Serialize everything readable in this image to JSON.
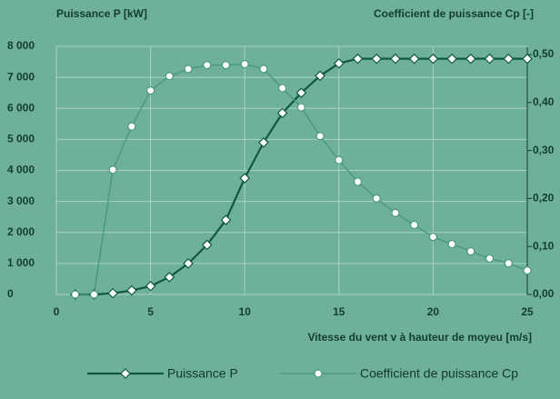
{
  "chart_data": {
    "type": "line",
    "ylabel": "Puissance P [kW]",
    "y2label": "Coefficient de puissance Cp [-]",
    "xlabel": "Vitesse du vent v à hauteur de moyeu [m/s]",
    "x": [
      1,
      2,
      3,
      4,
      5,
      6,
      7,
      8,
      9,
      10,
      11,
      12,
      13,
      14,
      15,
      16,
      17,
      18,
      19,
      20,
      21,
      22,
      23,
      24,
      25
    ],
    "series": [
      {
        "name": "Puissance P",
        "color": "#0f5a3f",
        "marker": "diamond",
        "axis": "y",
        "values": [
          0,
          0,
          40,
          130,
          270,
          560,
          1000,
          1600,
          2400,
          3750,
          4900,
          5850,
          6500,
          7050,
          7450,
          7600,
          7600,
          7600,
          7600,
          7600,
          7600,
          7600,
          7600,
          7600,
          7600
        ]
      },
      {
        "name": "Coefficient de puissance Cp",
        "color": "#4a9a7c",
        "marker": "circle",
        "axis": "y2",
        "values": [
          0,
          0,
          0.26,
          0.35,
          0.425,
          0.455,
          0.47,
          0.478,
          0.478,
          0.48,
          0.47,
          0.43,
          0.39,
          0.33,
          0.28,
          0.235,
          0.2,
          0.17,
          0.145,
          0.12,
          0.105,
          0.09,
          0.075,
          0.065,
          0.05
        ]
      }
    ],
    "xlim": [
      0,
      25
    ],
    "xticks": [
      0,
      5,
      10,
      15,
      20,
      25
    ],
    "ylim": [
      0,
      8000
    ],
    "yticks": [
      {
        "value": 0,
        "label": "0"
      },
      {
        "value": 1000,
        "label": "1 000"
      },
      {
        "value": 2000,
        "label": "2 000"
      },
      {
        "value": 3000,
        "label": "3 000"
      },
      {
        "value": 4000,
        "label": "4 000"
      },
      {
        "value": 5000,
        "label": "5 000"
      },
      {
        "value": 6000,
        "label": "6 000"
      },
      {
        "value": 7000,
        "label": "7 000"
      },
      {
        "value": 8000,
        "label": "8 000"
      }
    ],
    "y2lim": [
      0,
      0.5
    ],
    "y2ticks": [
      {
        "value": 0,
        "label": "0,00"
      },
      {
        "value": 0.1,
        "label": "0,10"
      },
      {
        "value": 0.2,
        "label": "0,20"
      },
      {
        "value": 0.3,
        "label": "0,30"
      },
      {
        "value": 0.4,
        "label": "0,40"
      },
      {
        "value": 0.5,
        "label": "0,50"
      }
    ],
    "grid": true
  }
}
